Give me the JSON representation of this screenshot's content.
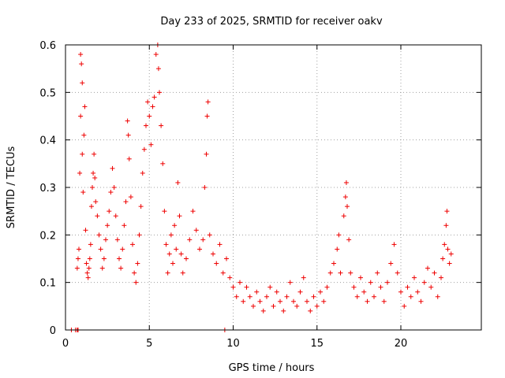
{
  "chart_data": {
    "type": "scatter",
    "title": "Day 233 of 2025, SRMTID for receiver oakv",
    "xlabel": "GPS time / hours",
    "ylabel": "SRMTID / TECUs",
    "xlim": [
      0,
      24.8
    ],
    "ylim": [
      0,
      0.6
    ],
    "xticks": [
      0,
      5,
      10,
      15,
      20
    ],
    "xtick_labels": [
      "0",
      "5",
      "10",
      "15",
      "20"
    ],
    "yticks": [
      0,
      0.1,
      0.2,
      0.3,
      0.4,
      0.5,
      0.6
    ],
    "ytick_labels": [
      "0",
      "0.1",
      "0.2",
      "0.3",
      "0.4",
      "0.5",
      "0.6"
    ],
    "grid": true,
    "marker": "+",
    "color": "#ee0000",
    "series": [
      {
        "name": "SRMTID",
        "points": [
          [
            0.35,
            0.0
          ],
          [
            0.6,
            0.0
          ],
          [
            0.7,
            0.0
          ],
          [
            0.75,
            0.0
          ],
          [
            9.5,
            0.0
          ],
          [
            0.7,
            0.13
          ],
          [
            0.75,
            0.15
          ],
          [
            0.8,
            0.17
          ],
          [
            0.85,
            0.33
          ],
          [
            0.9,
            0.45
          ],
          [
            0.9,
            0.58
          ],
          [
            0.95,
            0.56
          ],
          [
            1.0,
            0.52
          ],
          [
            1.0,
            0.37
          ],
          [
            1.05,
            0.29
          ],
          [
            1.1,
            0.41
          ],
          [
            1.15,
            0.47
          ],
          [
            1.2,
            0.21
          ],
          [
            1.25,
            0.14
          ],
          [
            1.3,
            0.12
          ],
          [
            1.35,
            0.11
          ],
          [
            1.4,
            0.13
          ],
          [
            1.45,
            0.15
          ],
          [
            1.5,
            0.18
          ],
          [
            1.55,
            0.26
          ],
          [
            1.6,
            0.3
          ],
          [
            1.65,
            0.33
          ],
          [
            1.7,
            0.37
          ],
          [
            1.75,
            0.32
          ],
          [
            1.8,
            0.27
          ],
          [
            1.9,
            0.24
          ],
          [
            2.0,
            0.2
          ],
          [
            2.1,
            0.17
          ],
          [
            2.2,
            0.13
          ],
          [
            2.3,
            0.15
          ],
          [
            2.4,
            0.19
          ],
          [
            2.5,
            0.22
          ],
          [
            2.6,
            0.25
          ],
          [
            2.7,
            0.29
          ],
          [
            2.8,
            0.34
          ],
          [
            2.9,
            0.3
          ],
          [
            3.0,
            0.24
          ],
          [
            3.1,
            0.19
          ],
          [
            3.2,
            0.15
          ],
          [
            3.3,
            0.13
          ],
          [
            3.4,
            0.17
          ],
          [
            3.5,
            0.22
          ],
          [
            3.6,
            0.27
          ],
          [
            3.7,
            0.44
          ],
          [
            3.75,
            0.41
          ],
          [
            3.8,
            0.36
          ],
          [
            3.9,
            0.28
          ],
          [
            4.0,
            0.18
          ],
          [
            4.1,
            0.12
          ],
          [
            4.2,
            0.1
          ],
          [
            4.3,
            0.14
          ],
          [
            4.4,
            0.2
          ],
          [
            4.5,
            0.26
          ],
          [
            4.6,
            0.33
          ],
          [
            4.7,
            0.38
          ],
          [
            4.8,
            0.43
          ],
          [
            4.9,
            0.48
          ],
          [
            5.0,
            0.45
          ],
          [
            5.1,
            0.39
          ],
          [
            5.2,
            0.47
          ],
          [
            5.3,
            0.49
          ],
          [
            5.4,
            0.58
          ],
          [
            5.5,
            0.6
          ],
          [
            5.55,
            0.55
          ],
          [
            5.6,
            0.5
          ],
          [
            5.7,
            0.43
          ],
          [
            5.8,
            0.35
          ],
          [
            5.9,
            0.25
          ],
          [
            6.0,
            0.18
          ],
          [
            6.1,
            0.12
          ],
          [
            6.2,
            0.16
          ],
          [
            6.3,
            0.2
          ],
          [
            6.4,
            0.14
          ],
          [
            6.5,
            0.22
          ],
          [
            6.6,
            0.17
          ],
          [
            6.7,
            0.31
          ],
          [
            6.8,
            0.24
          ],
          [
            6.9,
            0.16
          ],
          [
            7.0,
            0.12
          ],
          [
            7.2,
            0.15
          ],
          [
            7.4,
            0.19
          ],
          [
            7.6,
            0.25
          ],
          [
            7.8,
            0.21
          ],
          [
            8.0,
            0.17
          ],
          [
            8.2,
            0.19
          ],
          [
            8.3,
            0.3
          ],
          [
            8.4,
            0.37
          ],
          [
            8.45,
            0.45
          ],
          [
            8.5,
            0.48
          ],
          [
            8.6,
            0.2
          ],
          [
            8.8,
            0.16
          ],
          [
            9.0,
            0.14
          ],
          [
            9.2,
            0.18
          ],
          [
            9.4,
            0.12
          ],
          [
            9.6,
            0.15
          ],
          [
            9.8,
            0.11
          ],
          [
            10.0,
            0.09
          ],
          [
            10.2,
            0.07
          ],
          [
            10.4,
            0.1
          ],
          [
            10.6,
            0.06
          ],
          [
            10.8,
            0.09
          ],
          [
            11.0,
            0.07
          ],
          [
            11.2,
            0.05
          ],
          [
            11.4,
            0.08
          ],
          [
            11.6,
            0.06
          ],
          [
            11.8,
            0.04
          ],
          [
            12.0,
            0.07
          ],
          [
            12.2,
            0.09
          ],
          [
            12.4,
            0.05
          ],
          [
            12.6,
            0.08
          ],
          [
            12.8,
            0.06
          ],
          [
            13.0,
            0.04
          ],
          [
            13.2,
            0.07
          ],
          [
            13.4,
            0.1
          ],
          [
            13.6,
            0.06
          ],
          [
            13.8,
            0.05
          ],
          [
            14.0,
            0.08
          ],
          [
            14.2,
            0.11
          ],
          [
            14.4,
            0.06
          ],
          [
            14.6,
            0.04
          ],
          [
            14.8,
            0.07
          ],
          [
            15.0,
            0.05
          ],
          [
            15.2,
            0.08
          ],
          [
            15.4,
            0.06
          ],
          [
            15.6,
            0.09
          ],
          [
            15.8,
            0.12
          ],
          [
            16.0,
            0.14
          ],
          [
            16.2,
            0.17
          ],
          [
            16.3,
            0.2
          ],
          [
            16.4,
            0.12
          ],
          [
            16.6,
            0.24
          ],
          [
            16.7,
            0.28
          ],
          [
            16.75,
            0.31
          ],
          [
            16.8,
            0.26
          ],
          [
            16.9,
            0.19
          ],
          [
            17.0,
            0.12
          ],
          [
            17.2,
            0.09
          ],
          [
            17.4,
            0.07
          ],
          [
            17.6,
            0.11
          ],
          [
            17.8,
            0.08
          ],
          [
            18.0,
            0.06
          ],
          [
            18.2,
            0.1
          ],
          [
            18.4,
            0.07
          ],
          [
            18.6,
            0.12
          ],
          [
            18.8,
            0.09
          ],
          [
            19.0,
            0.06
          ],
          [
            19.2,
            0.1
          ],
          [
            19.4,
            0.14
          ],
          [
            19.6,
            0.18
          ],
          [
            19.8,
            0.12
          ],
          [
            20.0,
            0.08
          ],
          [
            20.2,
            0.05
          ],
          [
            20.4,
            0.09
          ],
          [
            20.6,
            0.07
          ],
          [
            20.8,
            0.11
          ],
          [
            21.0,
            0.08
          ],
          [
            21.2,
            0.06
          ],
          [
            21.4,
            0.1
          ],
          [
            21.6,
            0.13
          ],
          [
            21.8,
            0.09
          ],
          [
            22.0,
            0.12
          ],
          [
            22.2,
            0.07
          ],
          [
            22.4,
            0.11
          ],
          [
            22.5,
            0.15
          ],
          [
            22.6,
            0.18
          ],
          [
            22.7,
            0.22
          ],
          [
            22.75,
            0.25
          ],
          [
            22.8,
            0.17
          ],
          [
            22.9,
            0.14
          ],
          [
            23.0,
            0.16
          ]
        ]
      }
    ]
  }
}
